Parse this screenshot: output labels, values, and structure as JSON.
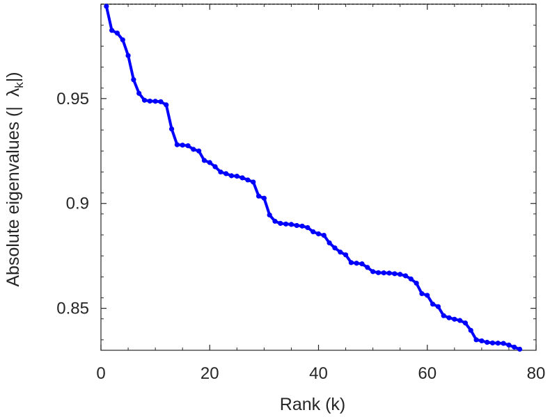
{
  "chart_data": {
    "type": "line",
    "title": "",
    "xlabel": "Rank (k)",
    "ylabel": "Absolute eigenvalues (|λk|)",
    "ylabel_parts": {
      "prefix": "Absolute eigenvalues (|",
      "symbol": "λ",
      "subscript": "k",
      "suffix": "|)"
    },
    "xlim": [
      0,
      80
    ],
    "ylim": [
      0.83,
      0.995
    ],
    "xticks": [
      0,
      20,
      40,
      60,
      80
    ],
    "xtick_labels": [
      "0",
      "20",
      "40",
      "60",
      "80"
    ],
    "yticks": [
      0.85,
      0.9,
      0.95
    ],
    "ytick_labels": [
      "0.85",
      "0.9",
      "0.95"
    ],
    "grid": false,
    "series_color": "#0000ff",
    "series": [
      {
        "x": [
          1,
          2,
          3,
          4,
          5,
          6,
          7,
          8,
          9,
          10,
          11,
          12,
          13,
          14,
          15,
          16,
          17,
          18,
          19,
          20,
          21,
          22,
          23,
          24,
          25,
          26,
          27,
          28,
          29,
          30,
          31,
          32,
          33,
          34,
          35,
          36,
          37,
          38,
          39,
          40,
          41,
          42,
          43,
          44,
          45,
          46,
          47,
          48,
          49,
          50,
          51,
          52,
          53,
          54,
          55,
          56,
          57,
          58,
          59,
          60,
          61,
          62,
          63,
          64,
          65,
          66,
          67,
          68,
          69,
          70,
          71,
          72,
          73,
          74,
          75,
          76,
          77
        ],
        "values": [
          0.994,
          0.9825,
          0.9812,
          0.978,
          0.9705,
          0.959,
          0.9525,
          0.9492,
          0.9488,
          0.9487,
          0.9485,
          0.947,
          0.9355,
          0.928,
          0.9278,
          0.9275,
          0.9258,
          0.925,
          0.9205,
          0.9195,
          0.9175,
          0.915,
          0.9142,
          0.9132,
          0.913,
          0.9122,
          0.9112,
          0.9102,
          0.9035,
          0.9025,
          0.8945,
          0.8915,
          0.8905,
          0.8902,
          0.89,
          0.8895,
          0.8892,
          0.8885,
          0.8865,
          0.8855,
          0.8848,
          0.8812,
          0.8788,
          0.8768,
          0.8755,
          0.8718,
          0.8715,
          0.8712,
          0.8695,
          0.8675,
          0.867,
          0.8669,
          0.8668,
          0.8665,
          0.8662,
          0.8655,
          0.864,
          0.862,
          0.857,
          0.8562,
          0.852,
          0.8508,
          0.8465,
          0.8455,
          0.8448,
          0.8442,
          0.843,
          0.8395,
          0.835,
          0.8345,
          0.8338,
          0.8335,
          0.8334,
          0.8333,
          0.8325,
          0.8315,
          0.8305
        ]
      }
    ]
  }
}
